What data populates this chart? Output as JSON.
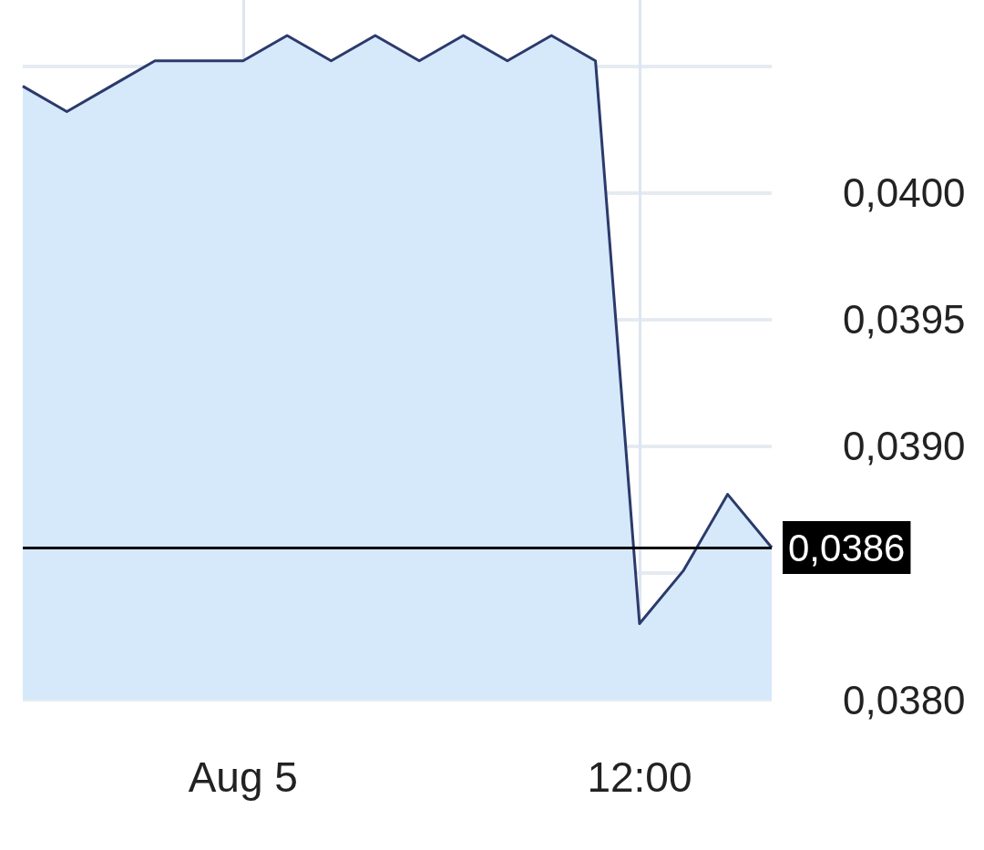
{
  "chart_data": {
    "type": "area",
    "categories": [
      null,
      null,
      null,
      null,
      null,
      "Aug 5",
      null,
      null,
      null,
      null,
      null,
      null,
      null,
      null,
      "12:00",
      null,
      null,
      null
    ],
    "series": [
      {
        "color": "#2b3a6b",
        "values": [
          0.04042,
          0.04032,
          0.04042,
          0.04052,
          0.04052,
          0.04052,
          0.04062,
          0.04052,
          0.04062,
          0.04052,
          0.04062,
          0.04052,
          0.04062,
          0.04052,
          0.0383,
          0.03851,
          0.03881,
          0.0386
        ]
      }
    ],
    "ylim": [
      0.038,
      0.04076
    ],
    "yticks": [
      {
        "value": 0.038,
        "label": "0,0380"
      },
      {
        "value": 0.0385,
        "label": null
      },
      {
        "value": 0.039,
        "label": "0,0390"
      },
      {
        "value": 0.0395,
        "label": "0,0395"
      },
      {
        "value": 0.04,
        "label": "0,0400"
      },
      {
        "value": 0.0405,
        "label": null
      }
    ],
    "ref_lines": [
      {
        "axis": "y",
        "value": 0.0386,
        "label": "0,0386",
        "color": "#000000"
      }
    ],
    "grid": true,
    "marker": "none",
    "line_style": "solid"
  }
}
